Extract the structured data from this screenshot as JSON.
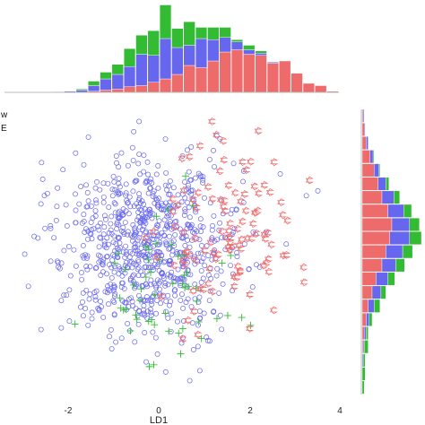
{
  "chart_data": {
    "type": "scatter",
    "title": "",
    "xlabel": "LD1",
    "ylabel": "",
    "xlim": [
      -3,
      4
    ],
    "ylim": [
      -2.6,
      2.9
    ],
    "grid": false,
    "x_ticks": [
      "-2",
      "0",
      "2",
      "4"
    ],
    "legend_fragments": [
      "w",
      "E"
    ],
    "series_colors": {
      "blue": "#6666ee",
      "red": "#ee6b6b",
      "green": "#33bb33"
    },
    "series_markers": {
      "blue": "circle",
      "red": "triangle-star",
      "green": "plus"
    },
    "series_counts": {
      "blue": 820,
      "red": 110,
      "green": 55
    },
    "series_centers": {
      "blue": [
        0.0,
        0.25
      ],
      "red": [
        1.6,
        0.45
      ],
      "green": [
        0.3,
        -0.6
      ]
    },
    "top_histogram": {
      "type": "bar",
      "stacked": true,
      "bins": [
        -3.0,
        -2.75,
        -2.5,
        -2.25,
        -2.0,
        -1.75,
        -1.5,
        -1.25,
        -1.0,
        -0.75,
        -0.5,
        -0.25,
        0.0,
        0.25,
        0.5,
        0.75,
        1.0,
        1.25,
        1.5,
        1.75,
        2.0,
        2.25,
        2.5,
        2.75,
        3.0,
        3.25,
        3.5,
        3.75
      ],
      "series": [
        {
          "color": "red",
          "values": [
            0,
            0,
            0,
            0,
            0,
            0,
            0,
            1,
            2,
            3,
            5,
            6,
            9,
            12,
            16,
            24,
            22,
            28,
            36,
            38,
            34,
            33,
            26,
            28,
            17,
            8,
            6,
            1
          ]
        },
        {
          "color": "blue",
          "values": [
            0,
            0,
            0,
            0,
            0.5,
            1,
            2,
            5,
            10,
            13,
            18,
            28,
            24,
            36,
            24,
            18,
            26,
            19,
            13,
            7,
            4,
            2,
            1,
            0,
            0,
            0,
            0,
            0
          ]
        },
        {
          "color": "green",
          "values": [
            0,
            0,
            0,
            0,
            0,
            0,
            1,
            4,
            6,
            9,
            16,
            17,
            22,
            30,
            17,
            21,
            10,
            11,
            9,
            2,
            4,
            2,
            0,
            0,
            0,
            0,
            0,
            0
          ]
        }
      ]
    },
    "right_histogram": {
      "type": "bar",
      "stacked": true,
      "orientation": "horizontal",
      "series": [
        {
          "color": "red",
          "values": [
            1,
            2,
            4,
            8,
            12,
            16,
            20,
            26,
            30,
            28,
            24,
            20,
            14,
            10,
            6,
            4,
            2,
            1,
            0,
            0,
            0
          ]
        },
        {
          "color": "blue",
          "values": [
            1,
            1,
            2,
            3,
            5,
            8,
            12,
            16,
            18,
            20,
            17,
            14,
            12,
            9,
            6,
            3,
            2,
            1,
            1,
            0,
            0
          ]
        },
        {
          "color": "green",
          "values": [
            0,
            0,
            0,
            1,
            1,
            3,
            6,
            8,
            10,
            12,
            10,
            9,
            7,
            5,
            6,
            3,
            2,
            4,
            2,
            3,
            2
          ]
        }
      ]
    }
  }
}
